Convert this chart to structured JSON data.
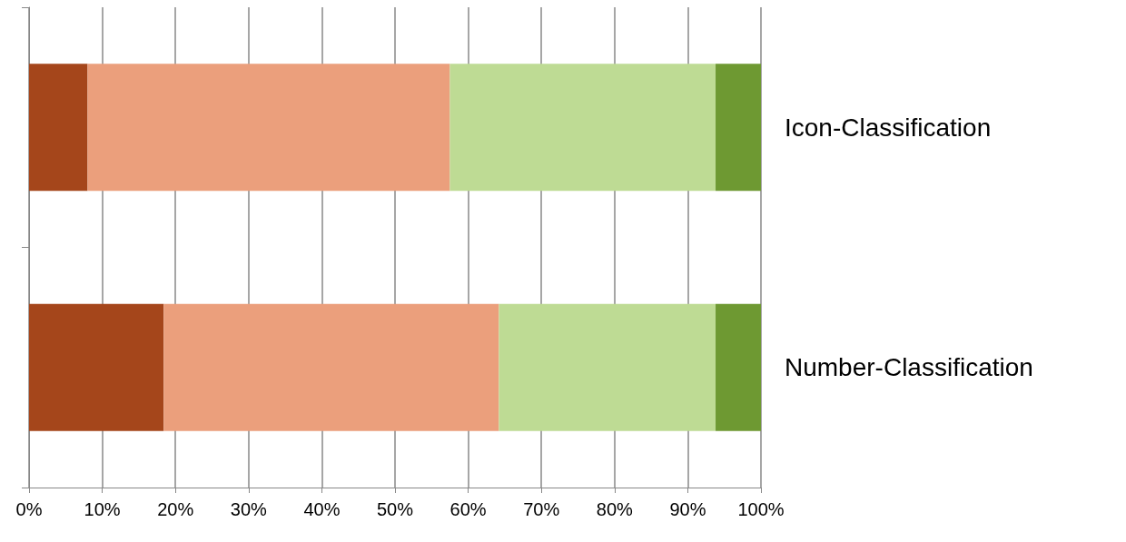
{
  "chart_data": {
    "type": "bar",
    "orientation": "horizontal",
    "stacked": true,
    "categories": [
      "Icon-Classification",
      "Number-Classification"
    ],
    "series": [
      {
        "color": "#a5461b",
        "values": [
          8,
          18.4
        ]
      },
      {
        "color": "#eb9f7c",
        "values": [
          49.5,
          45.8
        ]
      },
      {
        "color": "#bedb94",
        "values": [
          36.3,
          29.6
        ]
      },
      {
        "color": "#6e9932",
        "values": [
          6.2,
          6.2
        ]
      }
    ],
    "xlim": [
      0,
      100
    ],
    "xticks": [
      {
        "value": 0,
        "label": "0%"
      },
      {
        "value": 10,
        "label": "10%"
      },
      {
        "value": 20,
        "label": "20%"
      },
      {
        "value": 30,
        "label": "30%"
      },
      {
        "value": 40,
        "label": "40%"
      },
      {
        "value": 50,
        "label": "50%"
      },
      {
        "value": 60,
        "label": "60%"
      },
      {
        "value": 70,
        "label": "70%"
      },
      {
        "value": 80,
        "label": "80%"
      },
      {
        "value": 90,
        "label": "90%"
      },
      {
        "value": 100,
        "label": "100%"
      }
    ],
    "grid": "x"
  }
}
